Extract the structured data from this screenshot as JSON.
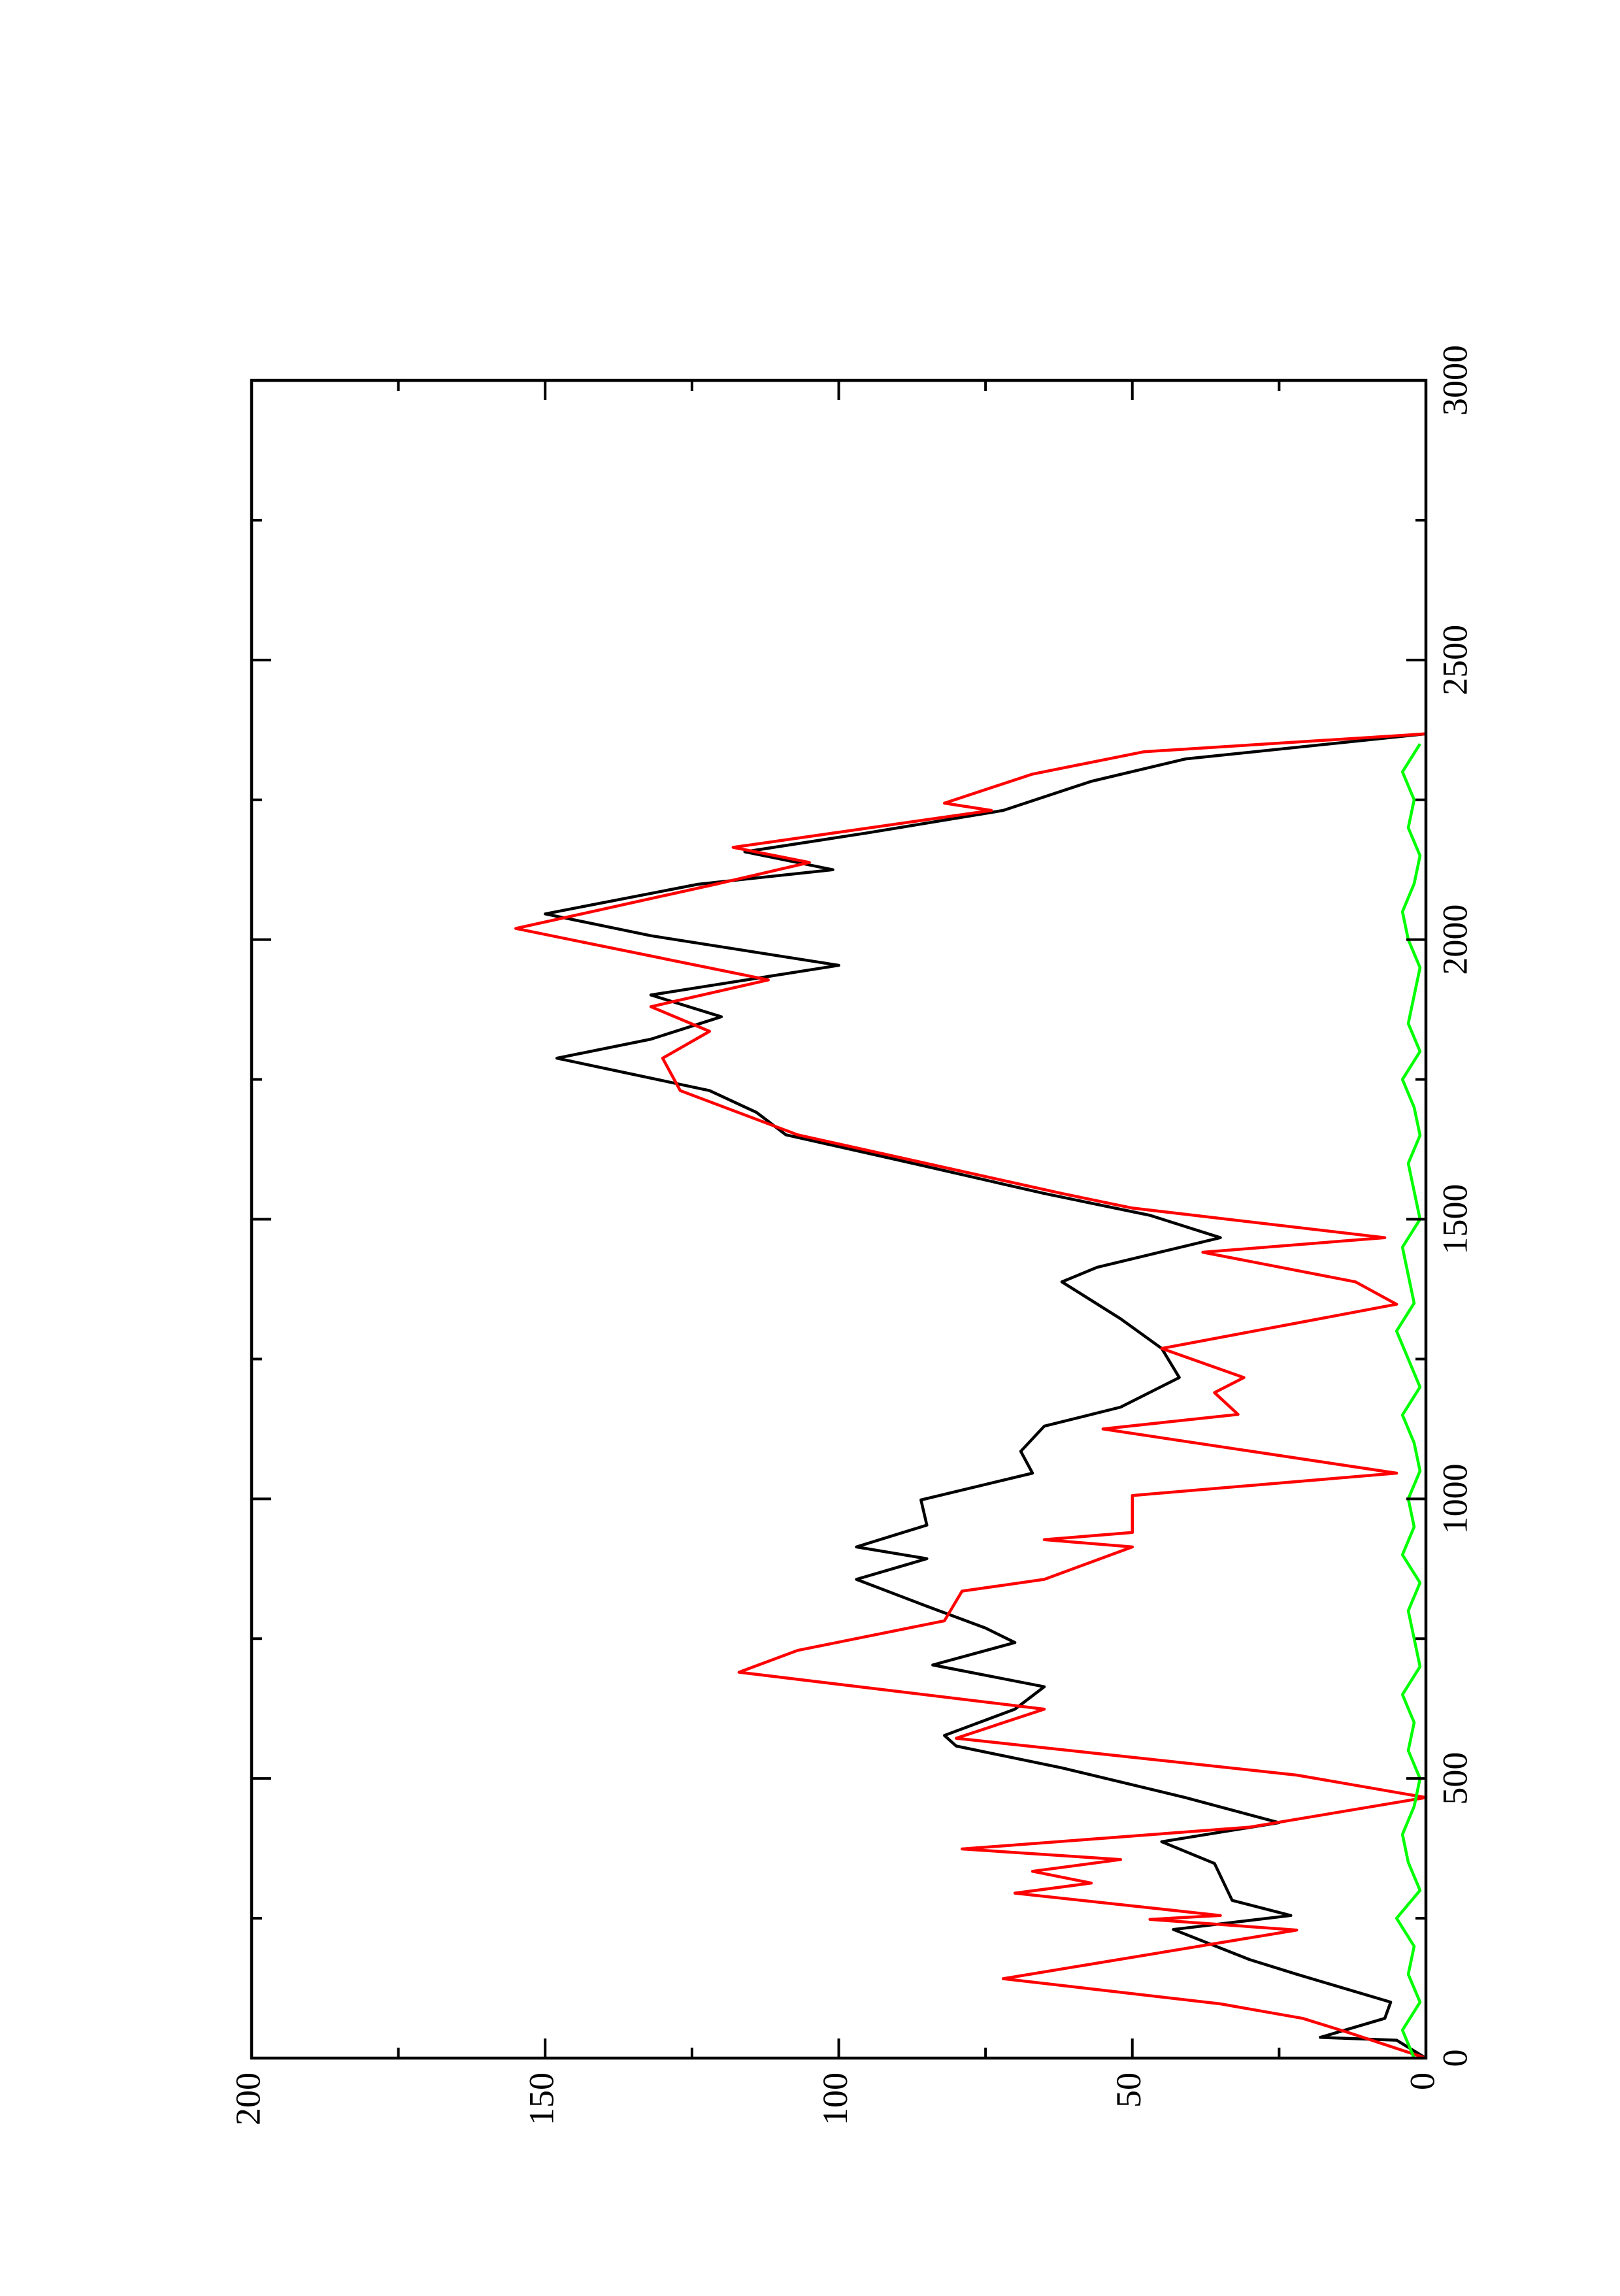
{
  "chart_data": {
    "type": "line",
    "xlim": [
      0,
      3000
    ],
    "ylim": [
      0,
      200
    ],
    "xticks": [
      0,
      500,
      1000,
      1500,
      2000,
      2500,
      3000
    ],
    "xticks_minor": [
      250,
      750,
      1250,
      1750,
      2250,
      2750
    ],
    "yticks": [
      0,
      50,
      100,
      150,
      200
    ],
    "yticks_minor": [
      25,
      75,
      125,
      175
    ],
    "rotated": true,
    "series": [
      {
        "color": "#000000",
        "x": [
          0,
          32,
          37,
          71,
          100,
          150,
          176,
          230,
          255,
          282,
          348,
          387,
          421,
          466,
          519,
          558,
          577,
          624,
          664,
          703,
          743,
          769,
          808,
          856,
          893,
          914,
          953,
          998,
          1046,
          1085,
          1130,
          1164,
          1217,
          1269,
          1322,
          1388,
          1414,
          1467,
          1507,
          1546,
          1599,
          1651,
          1691,
          1730,
          1788,
          1822,
          1862,
          1901,
          1954,
          2007,
          2046,
          2099,
          2125,
          2157,
          2191,
          2231,
          2283,
          2323,
          2368
        ],
        "values": [
          0,
          5,
          18,
          7,
          6,
          22,
          30,
          43,
          23,
          33,
          36,
          45,
          25,
          41,
          62,
          80,
          82,
          70,
          65,
          84,
          70,
          75,
          85,
          97,
          85,
          97,
          85,
          86,
          67,
          69,
          65,
          52,
          42,
          45,
          52,
          62,
          56,
          35,
          47,
          65,
          87,
          109,
          114,
          122,
          148,
          132,
          120,
          132,
          100,
          132,
          150,
          124,
          101,
          116,
          95,
          72,
          57,
          41,
          0
        ]
      },
      {
        "color": "#ff0000",
        "x": [
          0,
          45,
          71,
          97,
          142,
          229,
          248,
          255,
          295,
          313,
          334,
          355,
          374,
          413,
          466,
          506,
          572,
          624,
          690,
          729,
          782,
          835,
          856,
          914,
          927,
          940,
          1006,
          1046,
          1125,
          1151,
          1190,
          1217,
          1269,
          1348,
          1388,
          1441,
          1467,
          1520,
          1546,
          1651,
          1730,
          1788,
          1836,
          1880,
          1928,
          2020,
          2099,
          2138,
          2165,
          2231,
          2244,
          2296,
          2336,
          2368
        ],
        "values": [
          0,
          13,
          21,
          35,
          72,
          22,
          47,
          35,
          70,
          57,
          67,
          52,
          79,
          30,
          0,
          22,
          80,
          65,
          117,
          107,
          82,
          79,
          65,
          50,
          65,
          50,
          50,
          5,
          55,
          32,
          36,
          31,
          45,
          5,
          12,
          38,
          7,
          50,
          62,
          107,
          127,
          130,
          122,
          132,
          112,
          155,
          121,
          105,
          118,
          74,
          82,
          67,
          48,
          0
        ]
      },
      {
        "color": "#00ff00",
        "x": [
          0,
          50,
          100,
          150,
          200,
          250,
          300,
          350,
          400,
          450,
          500,
          550,
          600,
          650,
          700,
          750,
          800,
          850,
          900,
          950,
          1000,
          1050,
          1100,
          1150,
          1200,
          1250,
          1300,
          1350,
          1400,
          1450,
          1500,
          1550,
          1600,
          1650,
          1700,
          1750,
          1800,
          1850,
          1900,
          1950,
          2000,
          2050,
          2100,
          2150,
          2200,
          2250,
          2300,
          2350
        ],
        "values": [
          2,
          4,
          1,
          3,
          2,
          5,
          1,
          3,
          4,
          2,
          1,
          3,
          2,
          4,
          1,
          2,
          3,
          1,
          4,
          2,
          3,
          1,
          2,
          4,
          1,
          3,
          5,
          2,
          3,
          4,
          1,
          2,
          3,
          1,
          2,
          4,
          1,
          3,
          2,
          1,
          3,
          4,
          2,
          1,
          3,
          2,
          4,
          1
        ]
      }
    ]
  }
}
